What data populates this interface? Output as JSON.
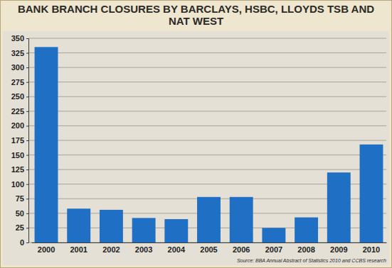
{
  "chart_data": {
    "type": "bar",
    "title": "BANK BRANCH CLOSURES BY BARCLAYS, HSBC, LLOYDS TSB AND NAT WEST",
    "categories": [
      "2000",
      "2001",
      "2002",
      "2003",
      "2004",
      "2005",
      "2006",
      "2007",
      "2008",
      "2009",
      "2010"
    ],
    "values": [
      335,
      58,
      56,
      42,
      40,
      78,
      78,
      25,
      43,
      120,
      168
    ],
    "color": "#1f6fc4",
    "ylim": [
      0,
      350
    ],
    "yticks": [
      0,
      25,
      50,
      75,
      100,
      125,
      150,
      175,
      200,
      225,
      250,
      275,
      300,
      325,
      350
    ],
    "grid": true,
    "source": "Source: BBA Annual Abstract of Statistics 2010 and CCBS research"
  }
}
